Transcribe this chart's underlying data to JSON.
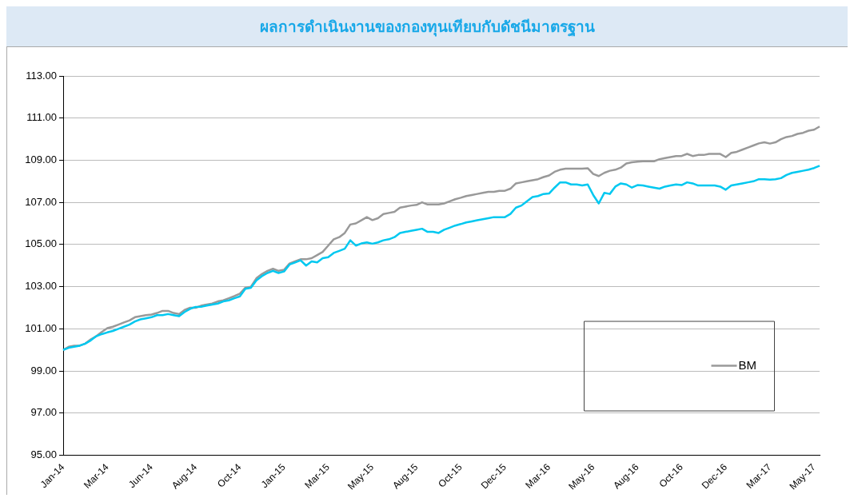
{
  "chart_data": {
    "type": "line",
    "title": "ผลการดำเนินงานของกองทุนเทียบกับดัชนีมาตรฐาน",
    "categories": [
      "Jan-14",
      null,
      null,
      null,
      null,
      null,
      null,
      null,
      "Mar-14",
      null,
      null,
      null,
      null,
      null,
      null,
      null,
      "Jun-14",
      null,
      null,
      null,
      null,
      null,
      null,
      null,
      "Aug-14",
      null,
      null,
      null,
      null,
      null,
      null,
      null,
      "Oct-14",
      null,
      null,
      null,
      null,
      null,
      null,
      null,
      "Jan-15",
      null,
      null,
      null,
      null,
      null,
      null,
      null,
      "Mar-15",
      null,
      null,
      null,
      null,
      null,
      null,
      null,
      "May-15",
      null,
      null,
      null,
      null,
      null,
      null,
      null,
      "Aug-15",
      null,
      null,
      null,
      null,
      null,
      null,
      null,
      "Oct-15",
      null,
      null,
      null,
      null,
      null,
      null,
      null,
      "Dec-15",
      null,
      null,
      null,
      null,
      null,
      null,
      null,
      "Mar-16",
      null,
      null,
      null,
      null,
      null,
      null,
      null,
      "May-16",
      null,
      null,
      null,
      null,
      null,
      null,
      null,
      "Aug-16",
      null,
      null,
      null,
      null,
      null,
      null,
      null,
      "Oct-16",
      null,
      null,
      null,
      null,
      null,
      null,
      null,
      "Dec-16",
      null,
      null,
      null,
      null,
      null,
      null,
      null,
      "Mar-17",
      null,
      null,
      null,
      null,
      null,
      null,
      null,
      "May-17",
      null
    ],
    "series": [
      {
        "color": "#00c8f0",
        "values": [
          100.0,
          100.1,
          100.15,
          100.2,
          100.3,
          100.45,
          100.65,
          100.75,
          100.83,
          100.9,
          101.0,
          101.1,
          101.2,
          101.35,
          101.45,
          101.5,
          101.55,
          101.65,
          101.65,
          101.7,
          101.65,
          101.6,
          101.8,
          101.95,
          102.04,
          102.05,
          102.1,
          102.15,
          102.2,
          102.3,
          102.35,
          102.45,
          102.54,
          102.9,
          102.95,
          103.3,
          103.5,
          103.65,
          103.75,
          103.65,
          103.72,
          104.05,
          104.15,
          104.25,
          104.0,
          104.2,
          104.15,
          104.35,
          104.4,
          104.6,
          104.7,
          104.8,
          105.2,
          104.95,
          105.05,
          105.1,
          105.04,
          105.1,
          105.2,
          105.25,
          105.35,
          105.55,
          105.6,
          105.65,
          105.7,
          105.75,
          105.6,
          105.6,
          105.55,
          105.7,
          105.8,
          105.9,
          105.97,
          106.05,
          106.1,
          106.15,
          106.2,
          106.25,
          106.3,
          106.3,
          106.3,
          106.45,
          106.75,
          106.85,
          107.05,
          107.25,
          107.3,
          107.4,
          107.42,
          107.7,
          107.95,
          107.95,
          107.85,
          107.85,
          107.8,
          107.85,
          107.35,
          106.95,
          107.45,
          107.4,
          107.75,
          107.9,
          107.85,
          107.7,
          107.82,
          107.8,
          107.75,
          107.7,
          107.65,
          107.75,
          107.8,
          107.85,
          107.82,
          107.95,
          107.9,
          107.8,
          107.8,
          107.8,
          107.8,
          107.75,
          107.6,
          107.8,
          107.85,
          107.9,
          107.95,
          108.0,
          108.1,
          108.1,
          108.08,
          108.1,
          108.15,
          108.3,
          108.4,
          108.45,
          108.5,
          108.55,
          108.63,
          108.74
        ]
      },
      {
        "name": "BM",
        "color": "#999999",
        "values": [
          100.0,
          100.15,
          100.2,
          100.2,
          100.3,
          100.5,
          100.65,
          100.85,
          101.03,
          101.1,
          101.2,
          101.3,
          101.4,
          101.55,
          101.6,
          101.65,
          101.68,
          101.75,
          101.85,
          101.85,
          101.75,
          101.7,
          101.9,
          102.0,
          102.0,
          102.1,
          102.15,
          102.2,
          102.3,
          102.35,
          102.45,
          102.55,
          102.67,
          102.95,
          103.0,
          103.4,
          103.6,
          103.75,
          103.85,
          103.75,
          103.8,
          104.1,
          104.2,
          104.3,
          104.3,
          104.35,
          104.5,
          104.65,
          104.95,
          105.25,
          105.35,
          105.55,
          105.95,
          106.0,
          106.15,
          106.3,
          106.16,
          106.25,
          106.45,
          106.5,
          106.55,
          106.75,
          106.8,
          106.85,
          106.88,
          107.0,
          106.9,
          106.9,
          106.9,
          106.95,
          107.05,
          107.15,
          107.22,
          107.3,
          107.35,
          107.4,
          107.45,
          107.5,
          107.5,
          107.55,
          107.55,
          107.65,
          107.9,
          107.95,
          108.0,
          108.05,
          108.1,
          108.2,
          108.28,
          108.45,
          108.55,
          108.6,
          108.6,
          108.6,
          108.6,
          108.62,
          108.35,
          108.25,
          108.4,
          108.5,
          108.55,
          108.65,
          108.85,
          108.9,
          108.93,
          108.95,
          108.95,
          108.95,
          109.05,
          109.1,
          109.15,
          109.2,
          109.2,
          109.3,
          109.2,
          109.25,
          109.25,
          109.3,
          109.3,
          109.3,
          109.15,
          109.35,
          109.4,
          109.5,
          109.6,
          109.7,
          109.8,
          109.85,
          109.79,
          109.85,
          110.0,
          110.1,
          110.15,
          110.25,
          110.3,
          110.4,
          110.45,
          110.6
        ]
      }
    ],
    "ylim": [
      95,
      113
    ],
    "yticks": [
      {
        "value": 95,
        "label": "95.00"
      },
      {
        "value": 97,
        "label": "97.00"
      },
      {
        "value": 99,
        "label": "99.00"
      },
      {
        "value": 101,
        "label": "101.00"
      },
      {
        "value": 103,
        "label": "103.00"
      },
      {
        "value": 105,
        "label": "105.00"
      },
      {
        "value": 107,
        "label": "107.00"
      },
      {
        "value": 109,
        "label": "109.00"
      },
      {
        "value": 111,
        "label": "111.00"
      },
      {
        "value": 113,
        "label": "113.00"
      }
    ],
    "grid": "y",
    "legend": "bottom right",
    "marker": "none",
    "line_style": "solid"
  }
}
